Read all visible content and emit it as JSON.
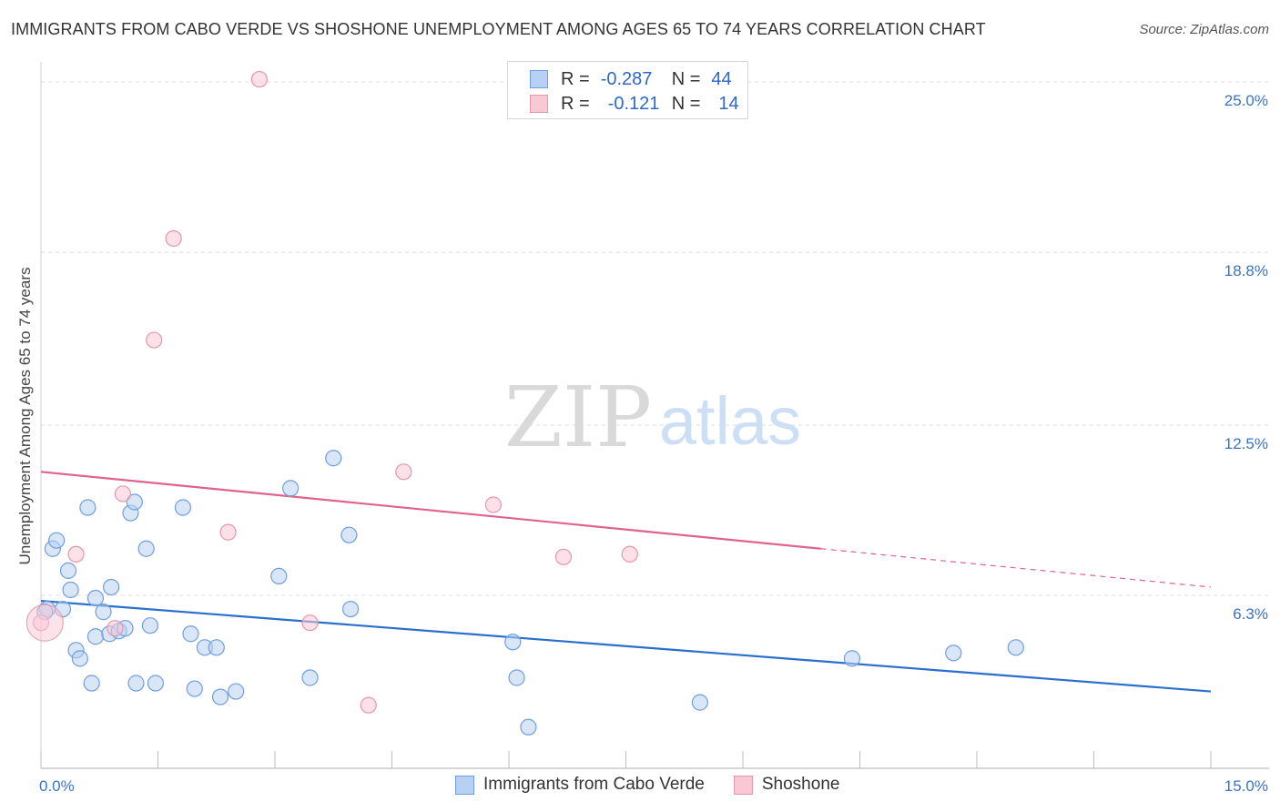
{
  "chart_data": {
    "type": "scatter",
    "title": "IMMIGRANTS FROM CABO VERDE VS SHOSHONE UNEMPLOYMENT AMONG AGES 65 TO 74 YEARS CORRELATION CHART",
    "source": "Source: ZipAtlas.com",
    "xlabel": "",
    "ylabel": "Unemployment Among Ages 65 to 74 years",
    "xlim": [
      0,
      15
    ],
    "ylim": [
      0,
      25.6
    ],
    "x_tick_labels": {
      "min": "0.0%",
      "max": "15.0%"
    },
    "y_ticks": [
      {
        "value": 6.3,
        "label": "6.3%"
      },
      {
        "value": 12.5,
        "label": "12.5%"
      },
      {
        "value": 18.8,
        "label": "18.8%"
      },
      {
        "value": 25.0,
        "label": "25.0%"
      }
    ],
    "watermark": {
      "zip": "ZIP",
      "atlas": "atlas"
    },
    "legend": [
      {
        "name": "Immigrants from Cabo Verde",
        "r_label": "R =",
        "r_value": "-0.287",
        "n_label": "N =",
        "n_value": "44",
        "fill": "#b8d1f3",
        "stroke": "#6f9ee0"
      },
      {
        "name": "Shoshone",
        "r_label": "R =",
        "r_value": "-0.121",
        "n_label": "N =",
        "n_value": "14",
        "fill": "#f9c8d5",
        "stroke": "#e695ad"
      }
    ],
    "series": [
      {
        "name": "Immigrants from Cabo Verde",
        "color": "#6f9ee0",
        "fill": "#b8d1f3",
        "trend": {
          "x0": 0.0,
          "y0": 6.1,
          "x1": 15.0,
          "y1": 2.8,
          "line": "#2a6fce"
        },
        "points": [
          [
            0.08,
            5.8
          ],
          [
            0.15,
            8.0
          ],
          [
            0.2,
            8.3
          ],
          [
            0.28,
            5.8
          ],
          [
            0.35,
            7.2
          ],
          [
            0.38,
            6.5
          ],
          [
            0.45,
            4.3
          ],
          [
            0.5,
            4.0
          ],
          [
            0.6,
            9.5
          ],
          [
            0.65,
            3.1
          ],
          [
            0.7,
            6.2
          ],
          [
            0.7,
            4.8
          ],
          [
            0.8,
            5.7
          ],
          [
            0.88,
            4.9
          ],
          [
            0.9,
            6.6
          ],
          [
            1.0,
            5.0
          ],
          [
            1.08,
            5.1
          ],
          [
            1.15,
            9.3
          ],
          [
            1.2,
            9.7
          ],
          [
            1.22,
            3.1
          ],
          [
            1.35,
            8.0
          ],
          [
            1.4,
            5.2
          ],
          [
            1.47,
            3.1
          ],
          [
            1.82,
            9.5
          ],
          [
            1.92,
            4.9
          ],
          [
            1.97,
            2.9
          ],
          [
            2.1,
            4.4
          ],
          [
            2.25,
            4.4
          ],
          [
            2.3,
            2.6
          ],
          [
            2.5,
            2.8
          ],
          [
            3.05,
            7.0
          ],
          [
            3.2,
            10.2
          ],
          [
            3.45,
            3.3
          ],
          [
            3.75,
            11.3
          ],
          [
            3.95,
            8.5
          ],
          [
            3.97,
            5.8
          ],
          [
            6.05,
            4.6
          ],
          [
            6.1,
            3.3
          ],
          [
            6.25,
            1.5
          ],
          [
            8.45,
            2.4
          ],
          [
            10.4,
            4.0
          ],
          [
            11.7,
            4.2
          ],
          [
            12.5,
            4.4
          ],
          [
            0.05,
            5.7
          ]
        ]
      },
      {
        "name": "Shoshone",
        "color": "#e695ad",
        "fill": "#f9c8d5",
        "trend": {
          "x0": 0.0,
          "y0": 10.8,
          "x1": 15.0,
          "y1": 6.6,
          "solid_until": 10.0,
          "line": "#e0628e"
        },
        "points": [
          [
            0.0,
            5.3
          ],
          [
            0.45,
            7.8
          ],
          [
            1.05,
            10.0
          ],
          [
            1.45,
            15.6
          ],
          [
            1.7,
            19.3
          ],
          [
            2.4,
            8.6
          ],
          [
            2.8,
            25.1
          ],
          [
            3.45,
            5.3
          ],
          [
            4.2,
            2.3
          ],
          [
            4.65,
            10.8
          ],
          [
            5.8,
            9.6
          ],
          [
            6.7,
            7.7
          ],
          [
            7.55,
            7.8
          ],
          [
            0.95,
            5.1
          ]
        ]
      }
    ]
  }
}
